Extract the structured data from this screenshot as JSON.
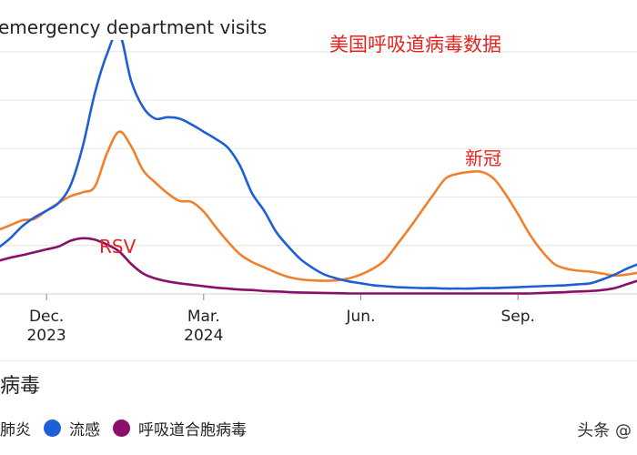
{
  "chart_data": {
    "type": "line",
    "title": "emergency department visits",
    "annotation_title": "美国呼吸道病毒数据",
    "grid": true,
    "x_ticks": [
      {
        "x": 4,
        "line1": "Dec.",
        "line2": "2023"
      },
      {
        "x": 17,
        "line1": "Mar.",
        "line2": "2024"
      },
      {
        "x": 30,
        "line1": "Jun.",
        "line2": ""
      },
      {
        "x": 43,
        "line1": "Sep.",
        "line2": ""
      }
    ],
    "series": [
      {
        "name": "新冠肺炎",
        "inline_label": "新冠",
        "color": "#f2802a",
        "x": [
          0,
          1,
          2,
          3,
          4,
          5,
          6,
          7,
          8,
          9,
          10,
          11,
          12,
          13,
          14,
          15,
          16,
          17,
          18,
          19,
          20,
          21,
          22,
          23,
          24,
          25,
          26,
          27,
          28,
          29,
          30,
          31,
          32,
          33,
          34,
          35,
          36,
          37,
          38,
          39,
          40,
          41,
          42,
          43,
          44,
          45,
          46,
          47,
          48,
          49,
          50,
          51,
          52,
          53
        ],
        "values": [
          1.32,
          1.42,
          1.52,
          1.55,
          1.72,
          1.88,
          2.02,
          2.1,
          2.22,
          2.9,
          3.35,
          3.05,
          2.55,
          2.3,
          2.08,
          1.92,
          1.9,
          1.7,
          1.38,
          1.08,
          0.82,
          0.66,
          0.55,
          0.44,
          0.35,
          0.3,
          0.28,
          0.27,
          0.28,
          0.32,
          0.4,
          0.52,
          0.7,
          1.02,
          1.35,
          1.7,
          2.05,
          2.38,
          2.48,
          2.52,
          2.52,
          2.38,
          2.05,
          1.65,
          1.22,
          0.88,
          0.62,
          0.52,
          0.48,
          0.46,
          0.42,
          0.38,
          0.4,
          0.44
        ]
      },
      {
        "name": "流感",
        "color": "#1d5fd6",
        "x": [
          0,
          1,
          2,
          3,
          4,
          5,
          6,
          7,
          8,
          9,
          10,
          11,
          12,
          13,
          14,
          15,
          16,
          17,
          18,
          19,
          20,
          21,
          22,
          23,
          24,
          25,
          26,
          27,
          28,
          29,
          30,
          31,
          32,
          33,
          34,
          35,
          36,
          37,
          38,
          39,
          40,
          41,
          42,
          43,
          44,
          45,
          46,
          47,
          48,
          49,
          50,
          51,
          52,
          53
        ],
        "values": [
          0.95,
          1.15,
          1.4,
          1.58,
          1.72,
          1.88,
          2.25,
          3.05,
          4.15,
          4.95,
          5.4,
          4.4,
          3.85,
          3.62,
          3.65,
          3.62,
          3.5,
          3.35,
          3.2,
          3.02,
          2.65,
          2.08,
          1.72,
          1.28,
          0.98,
          0.72,
          0.54,
          0.4,
          0.32,
          0.26,
          0.22,
          0.18,
          0.16,
          0.14,
          0.13,
          0.12,
          0.12,
          0.11,
          0.11,
          0.11,
          0.12,
          0.12,
          0.13,
          0.14,
          0.15,
          0.16,
          0.17,
          0.18,
          0.2,
          0.22,
          0.3,
          0.4,
          0.52,
          0.62
        ]
      },
      {
        "name": "呼吸道合胞病毒",
        "inline_label": "RSV",
        "color": "#8a0f6a",
        "x": [
          0,
          1,
          2,
          3,
          4,
          5,
          6,
          7,
          8,
          9,
          10,
          11,
          12,
          13,
          14,
          15,
          16,
          17,
          18,
          19,
          20,
          21,
          22,
          23,
          24,
          25,
          26,
          27,
          28,
          29,
          30,
          31,
          32,
          33,
          34,
          35,
          36,
          37,
          38,
          39,
          40,
          41,
          42,
          43,
          44,
          45,
          46,
          47,
          48,
          49,
          50,
          51,
          52,
          53
        ],
        "values": [
          0.68,
          0.75,
          0.8,
          0.86,
          0.92,
          0.98,
          1.1,
          1.15,
          1.12,
          1.02,
          0.88,
          0.62,
          0.42,
          0.32,
          0.26,
          0.22,
          0.19,
          0.16,
          0.13,
          0.11,
          0.09,
          0.08,
          0.06,
          0.05,
          0.04,
          0.03,
          0.025,
          0.02,
          0.015,
          0.01,
          0.01,
          0.01,
          0.01,
          0.01,
          0.01,
          0.01,
          0.01,
          0.01,
          0.01,
          0.01,
          0.01,
          0.01,
          0.01,
          0.01,
          0.01,
          0.02,
          0.03,
          0.04,
          0.05,
          0.06,
          0.08,
          0.12,
          0.2,
          0.28
        ]
      }
    ]
  },
  "legend": {
    "title": "病毒",
    "items": [
      {
        "label": "肺炎",
        "color": "#f2802a"
      },
      {
        "label": "流感",
        "color": "#1d5fd6"
      },
      {
        "label": "呼吸道合胞病毒",
        "color": "#8a0f6a"
      }
    ]
  },
  "watermark": "头条 @"
}
